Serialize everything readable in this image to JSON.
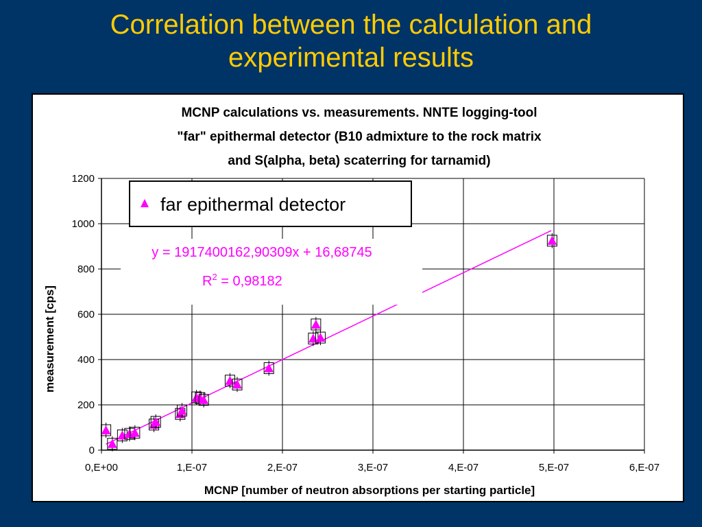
{
  "slide": {
    "title_line1": "Correlation between the calculation and",
    "title_line2": "experimental results"
  },
  "colors": {
    "background": "#003366",
    "title": "#ffcc00",
    "series": "#ff00ff"
  },
  "chart_data": {
    "type": "scatter",
    "title_lines": [
      "MCNP calculations vs. measurements. NNTE logging-tool",
      "\"far\" epithermal detector (B10 admixture to the rock matrix",
      "and S(alpha, beta) scaterring for tarnamid)"
    ],
    "xlabel": "MCNP  [number of neutron absorptions per starting particle]",
    "ylabel": "measurement [cps]",
    "xlim": [
      0,
      6e-07
    ],
    "ylim": [
      0,
      1200
    ],
    "x_ticks": [
      0,
      1e-07,
      2e-07,
      3e-07,
      4e-07,
      5e-07,
      6e-07
    ],
    "x_tick_labels": [
      "0,E+00",
      "1,E-07",
      "2,E-07",
      "3,E-07",
      "4,E-07",
      "5,E-07",
      "6,E-07"
    ],
    "y_ticks": [
      0,
      200,
      400,
      600,
      800,
      1000,
      1200
    ],
    "y_tick_labels": [
      "0",
      "200",
      "400",
      "600",
      "800",
      "1000",
      "1200"
    ],
    "grid": true,
    "legend_position": "top-left",
    "series": [
      {
        "name": "far epithermal detector",
        "marker": "triangle",
        "color": "#ff00ff",
        "points": [
          {
            "x": 5e-09,
            "y": 88
          },
          {
            "x": 1.2e-08,
            "y": 28
          },
          {
            "x": 2.3e-08,
            "y": 65
          },
          {
            "x": 3.1e-08,
            "y": 72
          },
          {
            "x": 3.7e-08,
            "y": 77
          },
          {
            "x": 5.8e-08,
            "y": 113
          },
          {
            "x": 6e-08,
            "y": 125
          },
          {
            "x": 8.7e-08,
            "y": 160
          },
          {
            "x": 8.9e-08,
            "y": 175
          },
          {
            "x": 1.05e-07,
            "y": 233
          },
          {
            "x": 1.09e-07,
            "y": 230
          },
          {
            "x": 1.13e-07,
            "y": 222
          },
          {
            "x": 1.42e-07,
            "y": 307
          },
          {
            "x": 1.5e-07,
            "y": 290
          },
          {
            "x": 1.85e-07,
            "y": 362
          },
          {
            "x": 2.34e-07,
            "y": 493
          },
          {
            "x": 2.37e-07,
            "y": 555
          },
          {
            "x": 2.42e-07,
            "y": 497
          },
          {
            "x": 4.98e-07,
            "y": 925
          }
        ]
      }
    ],
    "trendline": {
      "slope": 1917400162.90309,
      "intercept": 16.68745,
      "x_range": [
        5e-09,
        4.97e-07
      ],
      "equation_text": "y = 1917400162,90309x + 16,68745",
      "r2_prefix": "R",
      "r2_sup": "2",
      "r2_value": " = 0,98182"
    }
  }
}
